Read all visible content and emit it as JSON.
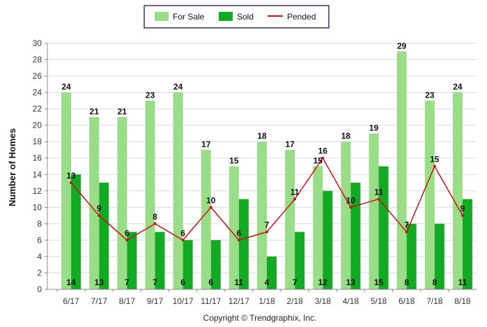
{
  "chart_data": {
    "type": "bar",
    "categories": [
      "6/17",
      "7/17",
      "8/17",
      "9/17",
      "10/17",
      "11/17",
      "12/17",
      "1/18",
      "2/18",
      "3/18",
      "4/18",
      "5/18",
      "6/18",
      "7/18",
      "8/18"
    ],
    "series": [
      {
        "name": "For Sale",
        "kind": "bar",
        "color": "#99dd88",
        "values": [
          24,
          21,
          21,
          23,
          24,
          17,
          15,
          18,
          17,
          15,
          18,
          19,
          29,
          23,
          24
        ]
      },
      {
        "name": "Sold",
        "kind": "bar",
        "color": "#11aa22",
        "values": [
          14,
          13,
          7,
          7,
          6,
          6,
          11,
          4,
          7,
          12,
          13,
          15,
          8,
          8,
          11
        ]
      },
      {
        "name": "Pended",
        "kind": "line",
        "color": "#cc1111",
        "values": [
          13,
          9,
          6,
          8,
          6,
          10,
          6,
          7,
          11,
          16,
          10,
          11,
          7,
          15,
          9
        ]
      }
    ],
    "ylabel": "Number of Homes",
    "xlabel": "",
    "ylim": [
      0,
      30
    ],
    "yticks": [
      0,
      2,
      4,
      6,
      8,
      10,
      12,
      14,
      16,
      18,
      20,
      22,
      24,
      26,
      28,
      30
    ],
    "grid": true,
    "legend_position": "top-center"
  },
  "footer": {
    "copyright": "Copyright © Trendgraphix, Inc."
  }
}
